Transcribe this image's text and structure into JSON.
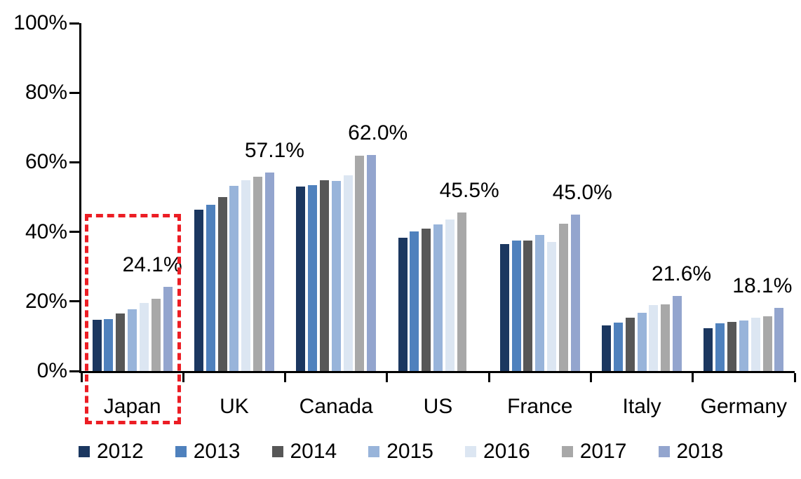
{
  "chart_data": {
    "type": "bar",
    "title": "",
    "xlabel": "",
    "ylabel": "",
    "ylim": [
      0,
      100
    ],
    "grid": false,
    "legend_position": "bottom",
    "categories": [
      "Japan",
      "UK",
      "Canada",
      "US",
      "France",
      "Italy",
      "Germany"
    ],
    "yticks": [
      "0%",
      "20%",
      "40%",
      "60%",
      "80%",
      "100%"
    ],
    "series": [
      {
        "name": "2012",
        "color": "#1B3760",
        "values": [
          14.8,
          46.3,
          53.0,
          38.3,
          36.5,
          13.1,
          12.4
        ]
      },
      {
        "name": "2013",
        "color": "#4F81BD",
        "values": [
          15.0,
          47.8,
          53.5,
          40.1,
          37.5,
          14.0,
          13.8
        ]
      },
      {
        "name": "2014",
        "color": "#575757",
        "values": [
          16.6,
          50.0,
          54.9,
          40.9,
          37.5,
          15.4,
          14.1
        ]
      },
      {
        "name": "2015",
        "color": "#98B4DA",
        "values": [
          17.8,
          53.2,
          54.7,
          42.1,
          39.2,
          16.8,
          14.6
        ]
      },
      {
        "name": "2016",
        "color": "#DCE6F2",
        "values": [
          19.6,
          54.8,
          56.2,
          43.5,
          37.2,
          19.0,
          15.4
        ]
      },
      {
        "name": "2017",
        "color": "#A8A8A8",
        "values": [
          20.8,
          55.9,
          61.8,
          45.5,
          42.3,
          19.2,
          15.8
        ]
      },
      {
        "name": "2018",
        "color": "#93A5CE",
        "values": [
          24.1,
          57.1,
          62.0,
          null,
          45.0,
          21.6,
          18.1
        ]
      }
    ],
    "value_labels": [
      {
        "category": "Japan",
        "text": "24.1%",
        "value": 24.1,
        "slot": 6,
        "dx": -22
      },
      {
        "category": "UK",
        "text": "57.1%",
        "value": 57.1,
        "slot": 6,
        "dx": 7
      },
      {
        "category": "Canada",
        "text": "62.0%",
        "value": 62.0,
        "slot": 6,
        "dx": 9
      },
      {
        "category": "US",
        "text": "45.5%",
        "value": 45.5,
        "slot": 5,
        "dx": 11
      },
      {
        "category": "France",
        "text": "45.0%",
        "value": 45.0,
        "slot": 6,
        "dx": 10
      },
      {
        "category": "Italy",
        "text": "21.6%",
        "value": 21.6,
        "slot": 6,
        "dx": 6
      },
      {
        "category": "Germany",
        "text": "18.1%",
        "value": 18.1,
        "slot": 6,
        "dx": -24
      }
    ],
    "highlight": {
      "category": "Japan",
      "color": "#EC1D24",
      "style": "dashed-rectangle"
    }
  }
}
